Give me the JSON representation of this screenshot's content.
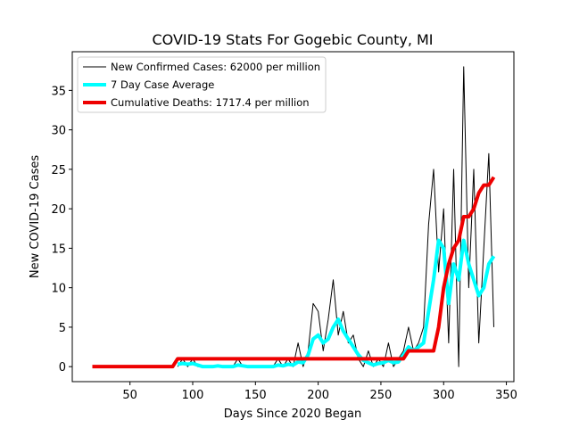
{
  "chart_data": {
    "type": "line",
    "title": "COVID-19 Stats For Gogebic County, MI",
    "xlabel": "Days Since 2020 Began",
    "ylabel": "New COVID-19 Cases",
    "xlim": [
      4,
      356
    ],
    "ylim": [
      -1.9,
      39.9
    ],
    "xticks": [
      50,
      100,
      150,
      200,
      250,
      300,
      350
    ],
    "yticks": [
      0,
      5,
      10,
      15,
      20,
      25,
      30,
      35
    ],
    "legend": "upper left",
    "grid": false,
    "x": [
      20,
      24,
      28,
      32,
      36,
      40,
      44,
      48,
      52,
      56,
      60,
      64,
      68,
      72,
      76,
      80,
      84,
      88,
      92,
      96,
      100,
      104,
      108,
      112,
      116,
      120,
      124,
      128,
      132,
      136,
      140,
      144,
      148,
      152,
      156,
      160,
      164,
      168,
      172,
      176,
      180,
      184,
      188,
      192,
      196,
      200,
      204,
      208,
      212,
      216,
      220,
      224,
      228,
      232,
      236,
      240,
      244,
      248,
      252,
      256,
      260,
      264,
      268,
      272,
      276,
      280,
      284,
      288,
      292,
      296,
      300,
      304,
      308,
      312,
      316,
      320,
      324,
      328,
      332,
      336,
      340
    ],
    "series": [
      {
        "name": "New Confirmed Cases: 62000 per million",
        "color": "#000000",
        "width": 1,
        "values": [
          null,
          null,
          null,
          null,
          null,
          null,
          null,
          null,
          null,
          null,
          null,
          null,
          null,
          null,
          null,
          null,
          null,
          0,
          1,
          0,
          1,
          0,
          0,
          0,
          0,
          0,
          0,
          0,
          0,
          1,
          0,
          0,
          0,
          0,
          0,
          0,
          0,
          1,
          0,
          1,
          0,
          3,
          0,
          2,
          8,
          7,
          2,
          6,
          11,
          4,
          7,
          3,
          4,
          1,
          0,
          2,
          0,
          1,
          0,
          3,
          0,
          1,
          2,
          5,
          2,
          3,
          5,
          18,
          25,
          12,
          20,
          3,
          25,
          0,
          38,
          10,
          25,
          3,
          15,
          27,
          5
        ]
      },
      {
        "name": "7 Day Case Average",
        "color": "#00ffff",
        "width": 4,
        "values": [
          null,
          null,
          null,
          null,
          null,
          null,
          null,
          null,
          null,
          null,
          null,
          null,
          null,
          null,
          null,
          null,
          null,
          0.3,
          0.4,
          0.3,
          0.4,
          0.2,
          0,
          0,
          0,
          0.1,
          0,
          0,
          0,
          0.2,
          0.1,
          0,
          0,
          0,
          0,
          0,
          0,
          0.2,
          0.1,
          0.3,
          0.2,
          0.6,
          0.5,
          1.5,
          3.5,
          4,
          3,
          3.5,
          5,
          6,
          4.5,
          3.5,
          2.5,
          1.5,
          0.8,
          0.5,
          0.2,
          0.4,
          0.5,
          0.8,
          0.5,
          0.6,
          1.5,
          2.5,
          2,
          2.5,
          3,
          7,
          11,
          16,
          15,
          8,
          13,
          11,
          16,
          13,
          11,
          9,
          10,
          13,
          14
        ]
      },
      {
        "name": "Cumulative Deaths: 1717.4 per million",
        "color": "#ee0000",
        "width": 4,
        "values": [
          0,
          0,
          0,
          0,
          0,
          0,
          0,
          0,
          0,
          0,
          0,
          0,
          0,
          0,
          0,
          0,
          0,
          1,
          1,
          1,
          1,
          1,
          1,
          1,
          1,
          1,
          1,
          1,
          1,
          1,
          1,
          1,
          1,
          1,
          1,
          1,
          1,
          1,
          1,
          1,
          1,
          1,
          1,
          1,
          1,
          1,
          1,
          1,
          1,
          1,
          1,
          1,
          1,
          1,
          1,
          1,
          1,
          1,
          1,
          1,
          1,
          1,
          1,
          2,
          2,
          2,
          2,
          2,
          2,
          5,
          10,
          13,
          15,
          16,
          19,
          19,
          20,
          22,
          23,
          23,
          24
        ]
      }
    ]
  }
}
